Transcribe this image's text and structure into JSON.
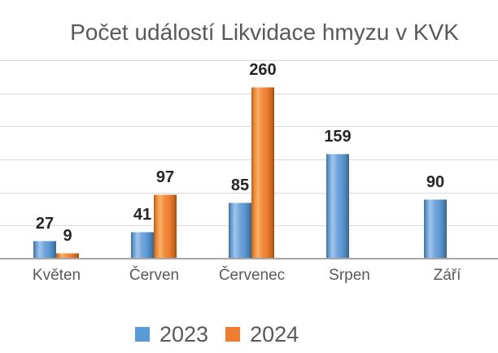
{
  "chart_data": {
    "type": "bar",
    "title": "Počet událostí Likvidace hmyzu v KVK",
    "categories": [
      "Květen",
      "Červen",
      "Červenec",
      "Srpen",
      "Září"
    ],
    "series": [
      {
        "name": "2023",
        "color": "#5B9BD5",
        "values": [
          27,
          41,
          85,
          159,
          90
        ]
      },
      {
        "name": "2024",
        "color": "#ED7D31",
        "values": [
          9,
          97,
          260,
          null,
          null
        ]
      }
    ],
    "ylim": [
      0,
      300
    ],
    "grid_step": 50,
    "grid": true,
    "data_labels": true,
    "legend_position": "bottom",
    "colors": {
      "title_text": "#595959",
      "axis_label_text": "#595959",
      "data_label_text": "#262626",
      "gridline": "#D9D9D9",
      "axis_line": "#A6A6A6",
      "background": "#FFFFFF"
    }
  }
}
